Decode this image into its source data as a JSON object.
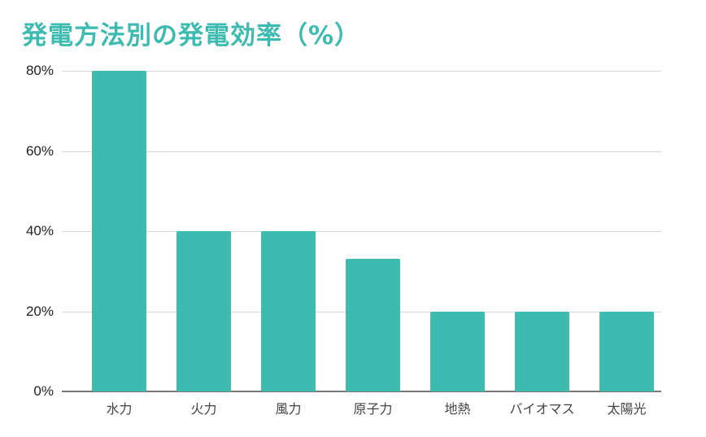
{
  "chart_data": {
    "type": "bar",
    "title": "発電方法別の発電効率（%）",
    "xlabel": "",
    "ylabel": "",
    "categories": [
      "水力",
      "火力",
      "風力",
      "原子力",
      "地熱",
      "バイオマス",
      "太陽光"
    ],
    "values": [
      80,
      40,
      40,
      33,
      20,
      20,
      20
    ],
    "unit": "%",
    "ylim": [
      0,
      80
    ],
    "yticks": [
      "0%",
      "20%",
      "40%",
      "60%",
      "80%"
    ],
    "grid": true,
    "legend": "none",
    "bar_color": "#3dbbb0",
    "title_color": "#3dbbb0"
  }
}
